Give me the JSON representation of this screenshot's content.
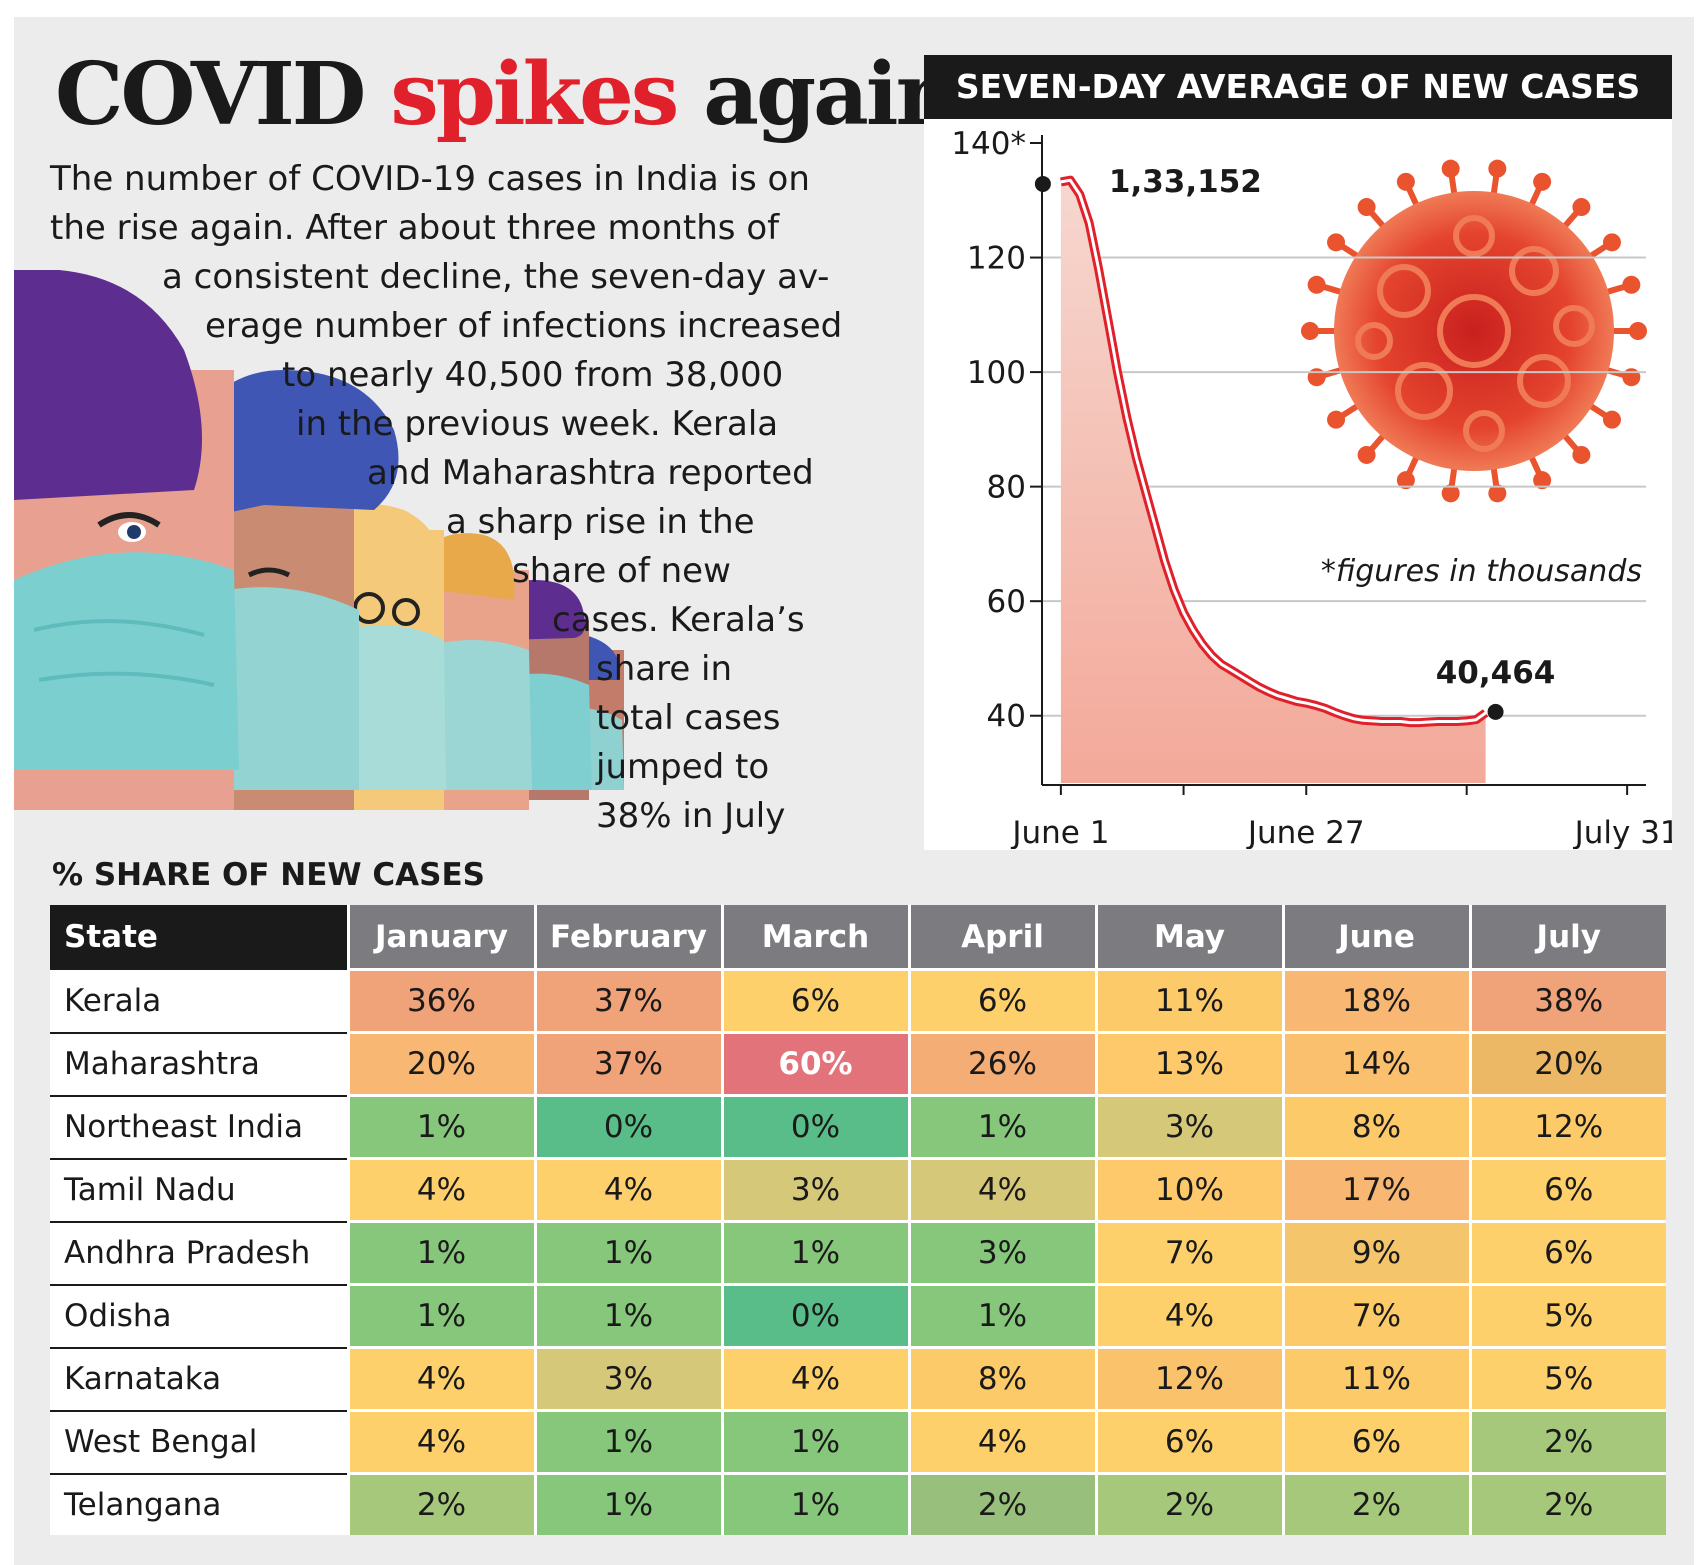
{
  "headline": {
    "part1": "COVID",
    "part2": "spikes",
    "part3": "again"
  },
  "intro_lines": [
    "The number of COVID-19 cases in India is on",
    "the rise again. After about three months of",
    "a consistent decline, the seven-day av-",
    "erage number of infections increased",
    "to nearly 40,500 from 38,000",
    "in the previous week. Kerala",
    "and Maharashtra reported",
    "a sharp rise in the",
    "share of new",
    "cases. Kerala’s",
    "share in",
    "total cases",
    "jumped to",
    "38% in July"
  ],
  "chart_data": [
    {
      "type": "line",
      "title": "SEVEN-DAY AVERAGE OF NEW CASES",
      "ylabel": "",
      "xlabel": "",
      "ylim": [
        30,
        140
      ],
      "yticks": [
        {
          "v": 140,
          "label": "140*"
        },
        {
          "v": 120,
          "label": "120"
        },
        {
          "v": 100,
          "label": "100"
        },
        {
          "v": 80,
          "label": "80"
        },
        {
          "v": 60,
          "label": "60"
        },
        {
          "v": 40,
          "label": "40"
        }
      ],
      "xticks": [
        {
          "day": 0,
          "label": "June 1"
        },
        {
          "day": 26,
          "label": "June 27"
        },
        {
          "day": 60,
          "label": "July 31"
        }
      ],
      "xlim": [
        -2,
        62
      ],
      "note": "*figures in thousands",
      "start_label": "1,33,152",
      "end_label": "40,464",
      "series": [
        {
          "name": "Seven-day average (thousands)",
          "points": [
            [
              0,
              133.2
            ],
            [
              1,
              133.5
            ],
            [
              2,
              131
            ],
            [
              3,
              126
            ],
            [
              4,
              118
            ],
            [
              5,
              109
            ],
            [
              6,
              100
            ],
            [
              7,
              92
            ],
            [
              8,
              85
            ],
            [
              9,
              79
            ],
            [
              10,
              73
            ],
            [
              11,
              67
            ],
            [
              12,
              62
            ],
            [
              13,
              58
            ],
            [
              14,
              55
            ],
            [
              15,
              52.5
            ],
            [
              16,
              50.5
            ],
            [
              17,
              49
            ],
            [
              18,
              48
            ],
            [
              19,
              47
            ],
            [
              20,
              46
            ],
            [
              21,
              45
            ],
            [
              22,
              44.2
            ],
            [
              23,
              43.5
            ],
            [
              24,
              43
            ],
            [
              25,
              42.5
            ],
            [
              26,
              42.2
            ],
            [
              27,
              41.8
            ],
            [
              28,
              41.3
            ],
            [
              29,
              40.6
            ],
            [
              30,
              40
            ],
            [
              31,
              39.5
            ],
            [
              32,
              39.2
            ],
            [
              33,
              39.1
            ],
            [
              34,
              39
            ],
            [
              35,
              39
            ],
            [
              36,
              39
            ],
            [
              37,
              38.8
            ],
            [
              38,
              38.8
            ],
            [
              39,
              38.9
            ],
            [
              40,
              39
            ],
            [
              41,
              39
            ],
            [
              42,
              39
            ],
            [
              43,
              39.1
            ],
            [
              44,
              39.3
            ],
            [
              45,
              40.5
            ]
          ]
        }
      ]
    },
    {
      "type": "table",
      "title": "% SHARE OF NEW CASES",
      "columns": [
        "State",
        "January",
        "February",
        "March",
        "April",
        "May",
        "June",
        "July"
      ],
      "rows": [
        {
          "state": "Kerala",
          "values": [
            "36%",
            "37%",
            "6%",
            "6%",
            "11%",
            "18%",
            "38%"
          ],
          "colors": [
            "#f0a278",
            "#f0a278",
            "#fdd06b",
            "#fdd06b",
            "#fdca6a",
            "#f8b772",
            "#f0a278"
          ]
        },
        {
          "state": "Maharashtra",
          "values": [
            "20%",
            "37%",
            "60%",
            "26%",
            "13%",
            "14%",
            "20%"
          ],
          "colors": [
            "#f8b772",
            "#f0a278",
            "#e3737a",
            "#f3ad75",
            "#fdc96a",
            "#fbc06e",
            "#ecb866"
          ]
        },
        {
          "state": "Northeast India",
          "values": [
            "1%",
            "0%",
            "0%",
            "1%",
            "3%",
            "8%",
            "12%"
          ],
          "colors": [
            "#86c77b",
            "#58bd88",
            "#58bd88",
            "#86c77b",
            "#d5c878",
            "#fdca6a",
            "#fdca6a"
          ]
        },
        {
          "state": "Tamil Nadu",
          "values": [
            "4%",
            "4%",
            "3%",
            "4%",
            "10%",
            "17%",
            "6%"
          ],
          "colors": [
            "#fdd06b",
            "#fdd06b",
            "#d5c878",
            "#d5c878",
            "#fdc96a",
            "#f8b772",
            "#fdd06b"
          ]
        },
        {
          "state": "Andhra Pradesh",
          "values": [
            "1%",
            "1%",
            "1%",
            "3%",
            "7%",
            "9%",
            "6%"
          ],
          "colors": [
            "#86c77b",
            "#86c77b",
            "#86c77b",
            "#86c77b",
            "#fdd06b",
            "#f5c56b",
            "#fdd06b"
          ]
        },
        {
          "state": "Odisha",
          "values": [
            "1%",
            "1%",
            "0%",
            "1%",
            "4%",
            "7%",
            "5%"
          ],
          "colors": [
            "#86c77b",
            "#86c77b",
            "#58bd88",
            "#86c77b",
            "#fdd06b",
            "#fdca6a",
            "#fdd06b"
          ]
        },
        {
          "state": "Karnataka",
          "values": [
            "4%",
            "3%",
            "4%",
            "8%",
            "12%",
            "11%",
            "5%"
          ],
          "colors": [
            "#fdd06b",
            "#d5c878",
            "#fdd06b",
            "#fdca6a",
            "#fbc26c",
            "#fdca6a",
            "#fdd06b"
          ]
        },
        {
          "state": "West Bengal",
          "values": [
            "4%",
            "1%",
            "1%",
            "4%",
            "6%",
            "6%",
            "2%"
          ],
          "colors": [
            "#fdd06b",
            "#86c77b",
            "#86c77b",
            "#fdd06b",
            "#fdd06b",
            "#fdd06b",
            "#a6c87b"
          ]
        },
        {
          "state": "Telangana",
          "values": [
            "2%",
            "1%",
            "1%",
            "2%",
            "2%",
            "2%",
            "2%"
          ],
          "colors": [
            "#a6c87b",
            "#86c77b",
            "#86c77b",
            "#98c07c",
            "#a6c87b",
            "#a6c87b",
            "#a6c87b"
          ]
        }
      ]
    }
  ]
}
